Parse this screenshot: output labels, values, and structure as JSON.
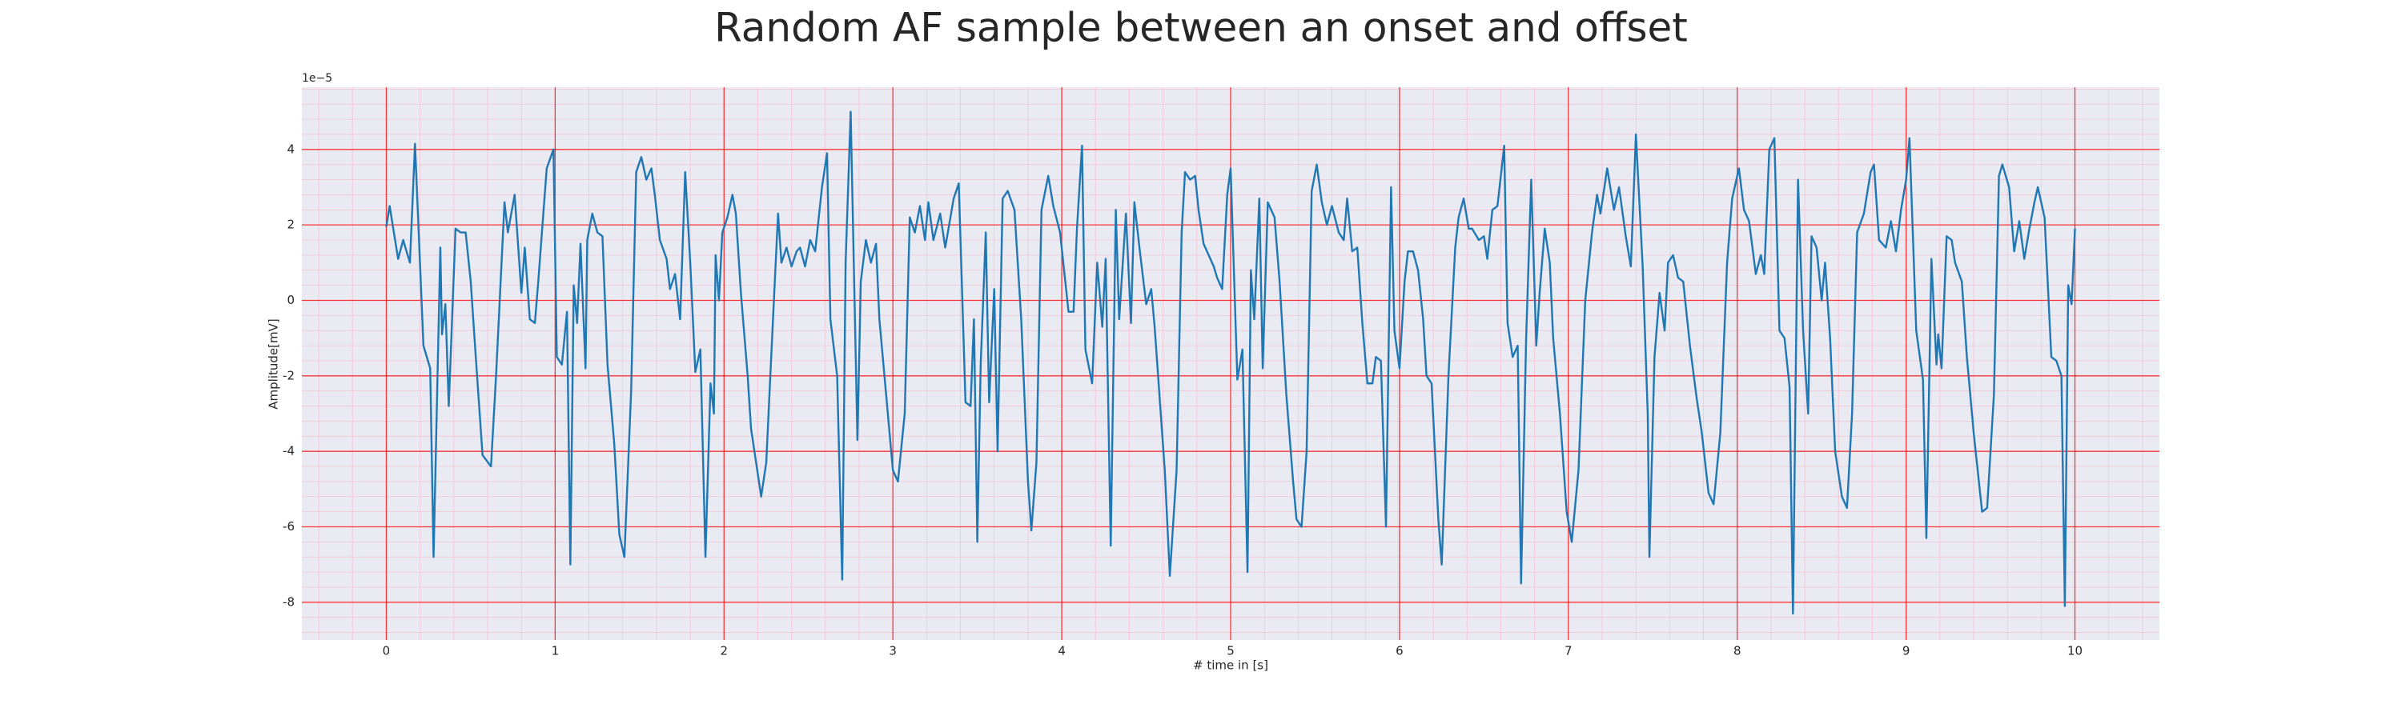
{
  "chart_data": {
    "type": "line",
    "title": "Random AF sample between an onset and offset",
    "xlabel": "# time in [s]",
    "ylabel": "Amplitude[mV]",
    "offset_label": "1e−5",
    "color": "#1f77b4",
    "grid": true,
    "grid_color": "#ff0000",
    "minor_grid": true,
    "background": "#eaeaf2",
    "xlim": [
      -0.5,
      10.5
    ],
    "ylim": [
      -9,
      5.65
    ],
    "xticks": [
      0,
      1,
      2,
      3,
      4,
      5,
      6,
      7,
      8,
      9,
      10
    ],
    "yticks": [
      -8,
      -6,
      -4,
      -2,
      0,
      2,
      4
    ],
    "x": [
      0.0,
      0.02,
      0.07,
      0.1,
      0.14,
      0.17,
      0.22,
      0.26,
      0.28,
      0.32,
      0.33,
      0.35,
      0.37,
      0.41,
      0.44,
      0.47,
      0.5,
      0.53,
      0.57,
      0.62,
      0.65,
      0.7,
      0.72,
      0.76,
      0.8,
      0.82,
      0.85,
      0.88,
      0.9,
      0.95,
      0.99,
      1.01,
      1.04,
      1.07,
      1.09,
      1.11,
      1.13,
      1.15,
      1.18,
      1.19,
      1.22,
      1.25,
      1.28,
      1.31,
      1.35,
      1.38,
      1.41,
      1.45,
      1.48,
      1.51,
      1.54,
      1.57,
      1.59,
      1.62,
      1.66,
      1.68,
      1.71,
      1.74,
      1.77,
      1.8,
      1.83,
      1.86,
      1.89,
      1.92,
      1.94,
      1.95,
      1.97,
      1.99,
      2.02,
      2.05,
      2.07,
      2.1,
      2.14,
      2.16,
      2.22,
      2.25,
      2.29,
      2.32,
      2.34,
      2.37,
      2.4,
      2.43,
      2.45,
      2.48,
      2.51,
      2.54,
      2.58,
      2.61,
      2.63,
      2.67,
      2.7,
      2.72,
      2.75,
      2.79,
      2.81,
      2.84,
      2.87,
      2.9,
      2.92,
      2.96,
      3.0,
      3.03,
      3.07,
      3.1,
      3.13,
      3.16,
      3.19,
      3.21,
      3.24,
      3.28,
      3.31,
      3.36,
      3.39,
      3.43,
      3.46,
      3.48,
      3.5,
      3.52,
      3.55,
      3.57,
      3.6,
      3.62,
      3.65,
      3.68,
      3.72,
      3.76,
      3.8,
      3.82,
      3.85,
      3.88,
      3.92,
      3.95,
      3.99,
      4.04,
      4.07,
      4.09,
      4.12,
      4.14,
      4.18,
      4.21,
      4.24,
      4.26,
      4.29,
      4.32,
      4.34,
      4.38,
      4.41,
      4.43,
      4.46,
      4.5,
      4.53,
      4.55,
      4.61,
      4.64,
      4.68,
      4.71,
      4.73,
      4.76,
      4.79,
      4.81,
      4.84,
      4.87,
      4.9,
      4.92,
      4.95,
      4.98,
      5.0,
      5.04,
      5.07,
      5.1,
      5.12,
      5.14,
      5.17,
      5.19,
      5.22,
      5.26,
      5.29,
      5.33,
      5.37,
      5.39,
      5.42,
      5.45,
      5.48,
      5.51,
      5.54,
      5.57,
      5.6,
      5.64,
      5.67,
      5.69,
      5.72,
      5.75,
      5.78,
      5.81,
      5.84,
      5.86,
      5.89,
      5.92,
      5.95,
      5.97,
      6.0,
      6.03,
      6.05,
      6.08,
      6.11,
      6.14,
      6.16,
      6.19,
      6.23,
      6.25,
      6.29,
      6.33,
      6.35,
      6.38,
      6.41,
      6.43,
      6.47,
      6.5,
      6.52,
      6.55,
      6.58,
      6.62,
      6.64,
      6.67,
      6.7,
      6.72,
      6.75,
      6.78,
      6.81,
      6.83,
      6.86,
      6.89,
      6.91,
      6.95,
      6.99,
      7.02,
      7.06,
      7.1,
      7.14,
      7.17,
      7.19,
      7.23,
      7.27,
      7.3,
      7.34,
      7.37,
      7.4,
      7.44,
      7.47,
      7.48,
      7.51,
      7.54,
      7.57,
      7.59,
      7.62,
      7.65,
      7.68,
      7.72,
      7.76,
      7.79,
      7.83,
      7.86,
      7.9,
      7.94,
      7.97,
      8.01,
      8.04,
      8.07,
      8.11,
      8.14,
      8.16,
      8.19,
      8.22,
      8.25,
      8.28,
      8.31,
      8.33,
      8.36,
      8.39,
      8.42,
      8.44,
      8.47,
      8.5,
      8.52,
      8.55,
      8.58,
      8.62,
      8.65,
      8.68,
      8.71,
      8.75,
      8.79,
      8.81,
      8.84,
      8.88,
      8.91,
      8.94,
      8.97,
      9.0,
      9.02,
      9.06,
      9.1,
      9.12,
      9.15,
      9.18,
      9.19,
      9.21,
      9.24,
      9.27,
      9.29,
      9.33,
      9.36,
      9.4,
      9.45,
      9.48,
      9.52,
      9.55,
      9.57,
      9.61,
      9.64,
      9.67,
      9.7,
      9.73,
      9.76,
      9.78,
      9.82,
      9.86,
      9.89,
      9.92,
      9.94,
      9.96,
      9.98,
      10.0
    ],
    "values": [
      1.95,
      2.5,
      1.1,
      1.6,
      1.0,
      4.15,
      -1.2,
      -1.8,
      -6.8,
      1.4,
      -0.9,
      -0.1,
      -2.8,
      1.9,
      1.8,
      1.8,
      0.5,
      -1.5,
      -4.1,
      -4.4,
      -2.0,
      2.6,
      1.8,
      2.8,
      0.2,
      1.4,
      -0.5,
      -0.6,
      0.5,
      3.5,
      4.0,
      -1.5,
      -1.7,
      -0.3,
      -7.0,
      0.4,
      -0.6,
      1.5,
      -1.8,
      1.6,
      2.3,
      1.8,
      1.7,
      -1.7,
      -3.8,
      -6.2,
      -6.8,
      -2.4,
      3.4,
      3.8,
      3.2,
      3.5,
      2.8,
      1.6,
      1.1,
      0.3,
      0.7,
      -0.5,
      3.4,
      1.0,
      -1.9,
      -1.3,
      -6.8,
      -2.2,
      -3.0,
      1.2,
      0.0,
      1.8,
      2.2,
      2.8,
      2.3,
      0.2,
      -2.0,
      -3.4,
      -5.2,
      -4.3,
      -0.5,
      2.3,
      1.0,
      1.4,
      0.9,
      1.3,
      1.4,
      0.9,
      1.6,
      1.3,
      3.0,
      3.9,
      -0.5,
      -2.0,
      -7.4,
      1.0,
      5.0,
      -3.7,
      0.5,
      1.6,
      1.0,
      1.5,
      -0.5,
      -2.5,
      -4.5,
      -4.8,
      -3.0,
      2.2,
      1.8,
      2.5,
      1.6,
      2.6,
      1.6,
      2.3,
      1.4,
      2.7,
      3.1,
      -2.7,
      -2.8,
      -0.5,
      -6.4,
      -1.7,
      1.8,
      -2.7,
      0.3,
      -4.0,
      2.7,
      2.9,
      2.4,
      -0.5,
      -4.8,
      -6.1,
      -4.3,
      2.4,
      3.3,
      2.5,
      1.8,
      -0.3,
      -0.3,
      1.9,
      4.1,
      -1.3,
      -2.2,
      1.0,
      -0.7,
      1.1,
      -6.5,
      2.4,
      -0.5,
      2.3,
      -0.6,
      2.6,
      1.4,
      -0.1,
      0.3,
      -0.7,
      -4.5,
      -7.3,
      -4.5,
      1.8,
      3.4,
      3.2,
      3.3,
      2.4,
      1.5,
      1.2,
      0.9,
      0.6,
      0.3,
      2.8,
      3.5,
      -2.1,
      -1.3,
      -7.2,
      0.8,
      -0.5,
      2.7,
      -1.8,
      2.6,
      2.2,
      0.5,
      -2.5,
      -4.8,
      -5.8,
      -6.0,
      -4.0,
      2.9,
      3.6,
      2.6,
      2.0,
      2.5,
      1.8,
      1.6,
      2.7,
      1.3,
      1.4,
      -0.6,
      -2.2,
      -2.2,
      -1.5,
      -1.6,
      -6.0,
      3.0,
      -0.8,
      -1.8,
      0.5,
      1.3,
      1.3,
      0.8,
      -0.5,
      -2.0,
      -2.2,
      -5.8,
      -7.0,
      -2.0,
      1.4,
      2.2,
      2.7,
      1.9,
      1.9,
      1.6,
      1.7,
      1.1,
      2.4,
      2.5,
      4.1,
      -0.6,
      -1.5,
      -1.2,
      -7.5,
      -1.0,
      3.2,
      -1.2,
      0.2,
      1.9,
      1.0,
      -1.0,
      -3.0,
      -5.6,
      -6.4,
      -4.5,
      0.0,
      1.8,
      2.8,
      2.3,
      3.5,
      2.4,
      3.0,
      1.7,
      0.9,
      4.4,
      0.9,
      -3.0,
      -6.8,
      -1.5,
      0.2,
      -0.8,
      1.0,
      1.2,
      0.6,
      0.5,
      -1.2,
      -2.6,
      -3.5,
      -5.1,
      -5.4,
      -3.5,
      1.0,
      2.7,
      3.5,
      2.4,
      2.1,
      0.7,
      1.2,
      0.7,
      4.0,
      4.3,
      -0.8,
      -1.0,
      -2.3,
      -8.3,
      3.2,
      -0.8,
      -3.0,
      1.7,
      1.4,
      0.0,
      1.0,
      -1.0,
      -4.0,
      -5.2,
      -5.5,
      -3.0,
      1.8,
      2.3,
      3.4,
      3.6,
      1.6,
      1.4,
      2.1,
      1.3,
      2.4,
      3.2,
      4.3,
      -0.8,
      -2.1,
      -6.3,
      1.1,
      -1.7,
      -0.9,
      -1.8,
      1.7,
      1.6,
      1.0,
      0.5,
      -1.5,
      -3.5,
      -5.6,
      -5.5,
      -2.5,
      3.3,
      3.6,
      3.0,
      1.3,
      2.1,
      1.1,
      1.9,
      2.6,
      3.0,
      2.2,
      -1.5,
      -1.6,
      -2.0,
      -8.1,
      0.4,
      -0.1,
      1.9
    ]
  }
}
